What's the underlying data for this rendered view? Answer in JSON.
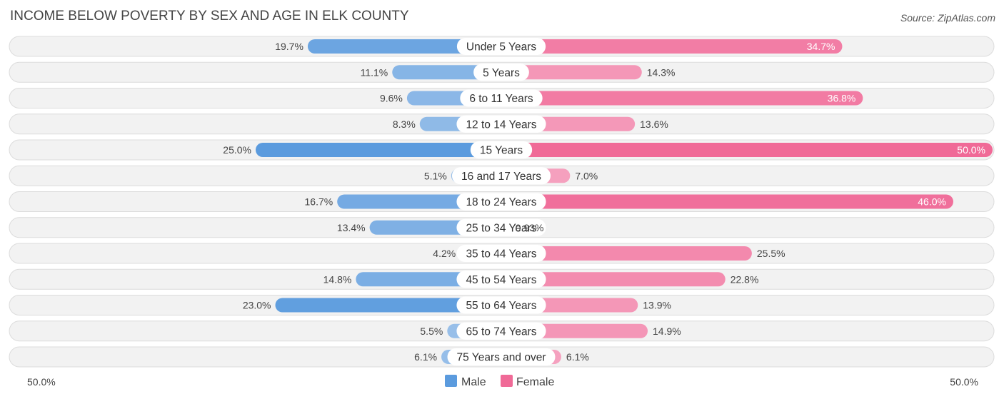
{
  "chart_data": {
    "type": "bar",
    "orientation": "horizontal-diverging",
    "title": "INCOME BELOW POVERTY BY SEX AND AGE IN ELK COUNTY",
    "source": "Source: ZipAtlas.com",
    "categories": [
      "Under 5 Years",
      "5 Years",
      "6 to 11 Years",
      "12 to 14 Years",
      "15 Years",
      "16 and 17 Years",
      "18 to 24 Years",
      "25 to 34 Years",
      "35 to 44 Years",
      "45 to 54 Years",
      "55 to 64 Years",
      "65 to 74 Years",
      "75 Years and over"
    ],
    "series": [
      {
        "name": "Male",
        "values": [
          19.7,
          11.1,
          9.6,
          8.3,
          25.0,
          5.1,
          16.7,
          13.4,
          4.2,
          14.8,
          23.0,
          5.5,
          6.1
        ],
        "labels": [
          "19.7%",
          "11.1%",
          "9.6%",
          "8.3%",
          "25.0%",
          "5.1%",
          "16.7%",
          "13.4%",
          "4.2%",
          "14.8%",
          "23.0%",
          "5.5%",
          "6.1%"
        ]
      },
      {
        "name": "Female",
        "values": [
          34.7,
          14.3,
          36.8,
          13.6,
          50.0,
          7.0,
          46.0,
          0.93,
          25.5,
          22.8,
          13.9,
          14.9,
          6.1
        ],
        "labels": [
          "34.7%",
          "14.3%",
          "36.8%",
          "13.6%",
          "50.0%",
          "7.0%",
          "46.0%",
          "0.93%",
          "25.5%",
          "22.8%",
          "13.9%",
          "14.9%",
          "6.1%"
        ]
      }
    ],
    "axis_left_label": "50.0%",
    "axis_right_label": "50.0%",
    "xlim": [
      -50,
      50
    ],
    "legend_position": "bottom-center",
    "colors": {
      "male_strong": "#5b9bde",
      "male_light": "#a9c9ec",
      "female_strong": "#f06a97",
      "female_light": "#f6a9c4",
      "row_bg": "#f2f2f2",
      "row_border": "#dcdcdc"
    }
  }
}
